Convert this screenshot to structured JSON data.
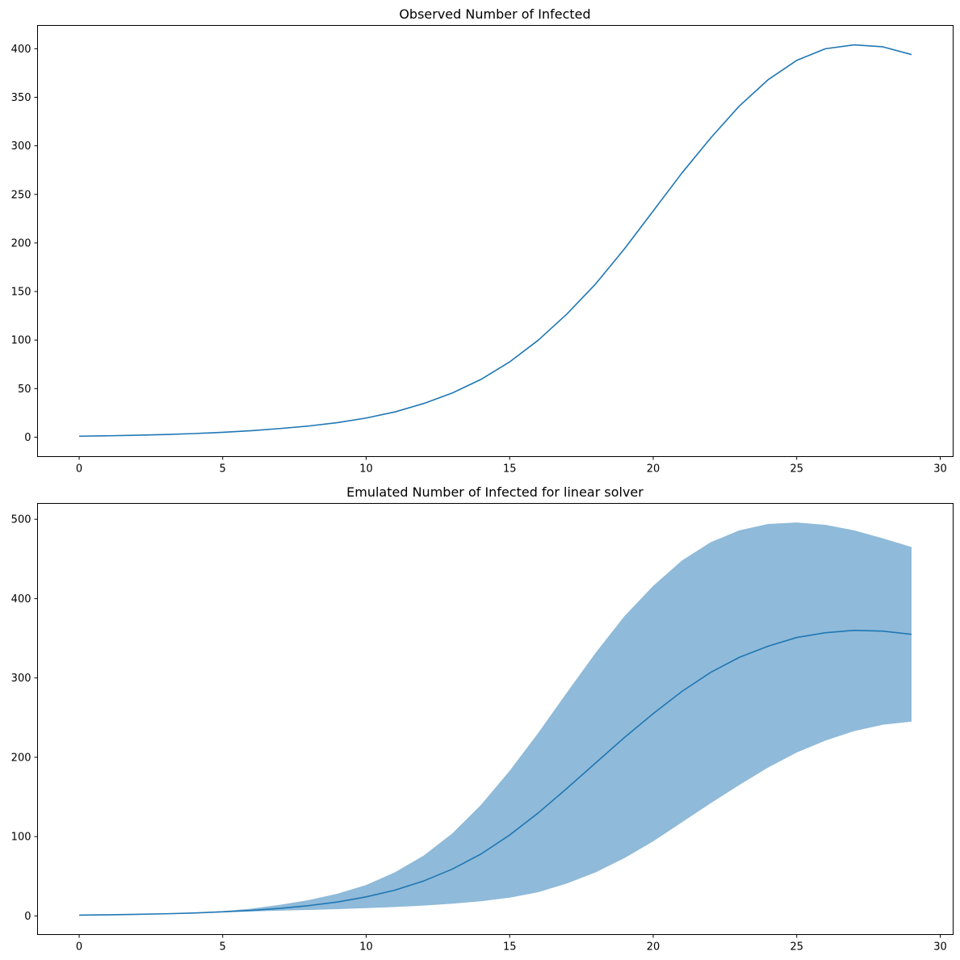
{
  "chart_data": [
    {
      "type": "line",
      "title": "Observed Number of Infected",
      "xlabel": "",
      "ylabel": "",
      "xlim": [
        -1.45,
        30.45
      ],
      "ylim": [
        -20,
        424
      ],
      "xticks": [
        0,
        5,
        10,
        15,
        20,
        25,
        30
      ],
      "yticks": [
        0,
        50,
        100,
        150,
        200,
        250,
        300,
        350,
        400
      ],
      "grid": false,
      "color": "#1f77b4",
      "series": [
        {
          "x": [
            0,
            1,
            2,
            3,
            4,
            5,
            6,
            7,
            8,
            9,
            10,
            11,
            12,
            13,
            14,
            15,
            16,
            17,
            18,
            19,
            20,
            21,
            22,
            23,
            24,
            25,
            26,
            27,
            28,
            29
          ],
          "values": [
            1,
            1.4,
            2,
            2.7,
            3.7,
            5,
            6.7,
            8.9,
            11.5,
            15,
            19.7,
            26,
            34.6,
            45.5,
            59.5,
            77.5,
            100,
            127,
            158,
            194,
            233,
            272,
            308,
            341,
            368,
            388,
            400,
            404,
            402,
            394
          ]
        }
      ]
    },
    {
      "type": "area",
      "title": "Emulated Number of Infected for linear solver",
      "xlabel": "",
      "ylabel": "",
      "xlim": [
        -1.45,
        30.45
      ],
      "ylim": [
        -23.5,
        520
      ],
      "xticks": [
        0,
        5,
        10,
        15,
        20,
        25,
        30
      ],
      "yticks": [
        0,
        100,
        200,
        300,
        400,
        500
      ],
      "grid": false,
      "line_color": "#1f77b4",
      "band_color": "#8fbad9",
      "series": [
        {
          "x": [
            0,
            1,
            2,
            3,
            4,
            5,
            6,
            7,
            8,
            9,
            10,
            11,
            12,
            13,
            14,
            15,
            16,
            17,
            18,
            19,
            20,
            21,
            22,
            23,
            24,
            25,
            26,
            27,
            28,
            29
          ],
          "mean": [
            1,
            1.4,
            2,
            2.7,
            3.7,
            5.2,
            7,
            9.5,
            13,
            17.5,
            24,
            32.5,
            44,
            59,
            78,
            102,
            130,
            161,
            193,
            225,
            255,
            283,
            307,
            326,
            340,
            351,
            357,
            360,
            359,
            355
          ],
          "lower": [
            1,
            1.3,
            1.8,
            2.5,
            3.4,
            4.5,
            5.6,
            6.6,
            7.6,
            8.6,
            9.8,
            11.2,
            13,
            15.4,
            18.5,
            23,
            30,
            41,
            55,
            73,
            94,
            118,
            142,
            165,
            187,
            206,
            221,
            233,
            241,
            245
          ],
          "upper": [
            1,
            1.5,
            2.2,
            3,
            4.1,
            6,
            9.2,
            14,
            20,
            28,
            39,
            55,
            76,
            104,
            140,
            183,
            231,
            282,
            332,
            378,
            416,
            448,
            471,
            486,
            494,
            496,
            493,
            486,
            476,
            465
          ]
        }
      ]
    }
  ]
}
